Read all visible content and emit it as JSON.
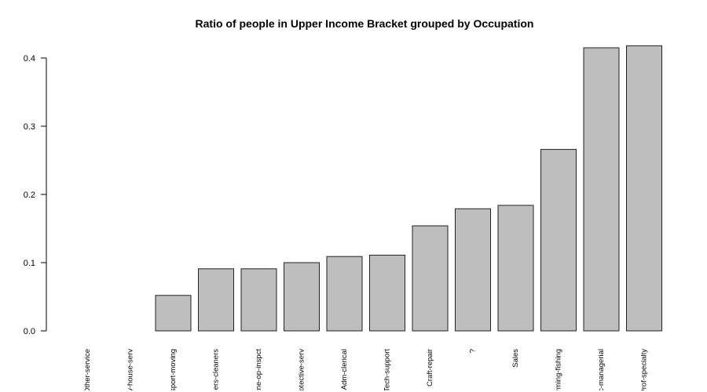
{
  "chart_data": {
    "type": "bar",
    "title": "Ratio of people in Upper Income Bracket grouped by Occupation",
    "xlabel": "",
    "ylabel": "",
    "ylim": [
      0,
      0.42
    ],
    "yticks": [
      0.0,
      0.1,
      0.2,
      0.3,
      0.4
    ],
    "ytick_labels": [
      "0.0",
      "0.1",
      "0.2",
      "0.3",
      "0.4"
    ],
    "grid": false,
    "bar_color": "#bebebe",
    "categories": [
      "Other-service",
      "Priv-house-serv",
      "Transport-moving",
      "Handlers-cleaners",
      "Machine-op-inspct",
      "Protective-serv",
      "Adm-clerical",
      "Tech-support",
      "Craft-repair",
      "?",
      "Sales",
      "Farming-fishing",
      "Exec-managerial",
      "Prof-specialty"
    ],
    "values": [
      0.0,
      0.0,
      0.052,
      0.091,
      0.091,
      0.1,
      0.109,
      0.111,
      0.154,
      0.179,
      0.184,
      0.266,
      0.415,
      0.418
    ]
  }
}
